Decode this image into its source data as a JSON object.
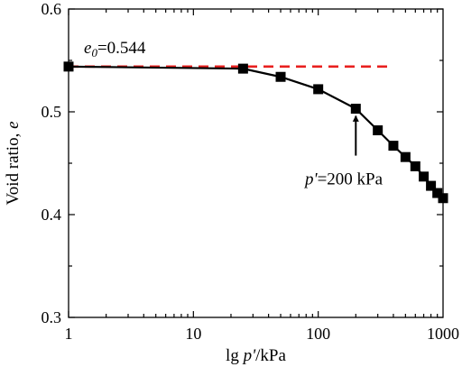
{
  "chart_data": {
    "type": "line",
    "title": "",
    "xlabel": {
      "prefix": "lg ",
      "var": "p'",
      "suffix": "/kPa"
    },
    "ylabel": {
      "prefix": "Void ratio, ",
      "var": "e"
    },
    "xscale": "log",
    "xlim": [
      1,
      1000
    ],
    "ylim": [
      0.3,
      0.6
    ],
    "xticks": [
      1,
      10,
      100,
      1000
    ],
    "xtick_labels": [
      "1",
      "10",
      "100",
      "1000"
    ],
    "yticks": [
      0.3,
      0.4,
      0.5,
      0.6
    ],
    "ytick_labels": [
      "0.3",
      "0.4",
      "0.5",
      "0.6"
    ],
    "grid": false,
    "legend": "none",
    "series": [
      {
        "color": "#000000",
        "marker": "square",
        "points": [
          {
            "x": 1,
            "y": 0.544
          },
          {
            "x": 25,
            "y": 0.542
          },
          {
            "x": 50,
            "y": 0.534
          },
          {
            "x": 100,
            "y": 0.522
          },
          {
            "x": 200,
            "y": 0.503
          },
          {
            "x": 300,
            "y": 0.482
          },
          {
            "x": 400,
            "y": 0.467
          },
          {
            "x": 500,
            "y": 0.456
          },
          {
            "x": 600,
            "y": 0.447
          },
          {
            "x": 700,
            "y": 0.437
          },
          {
            "x": 800,
            "y": 0.428
          },
          {
            "x": 900,
            "y": 0.421
          },
          {
            "x": 1000,
            "y": 0.416
          }
        ]
      }
    ],
    "reference_line": {
      "y": 0.544,
      "x_from": 1,
      "x_to": 380,
      "color": "#e8201f",
      "style": "dashed",
      "label_var": "e",
      "label_sub": "0",
      "label_value": "=0.544"
    },
    "annotation": {
      "target_x": 200,
      "target_y": 0.503,
      "label_var": "p'",
      "label_value": "=200 kPa"
    }
  }
}
